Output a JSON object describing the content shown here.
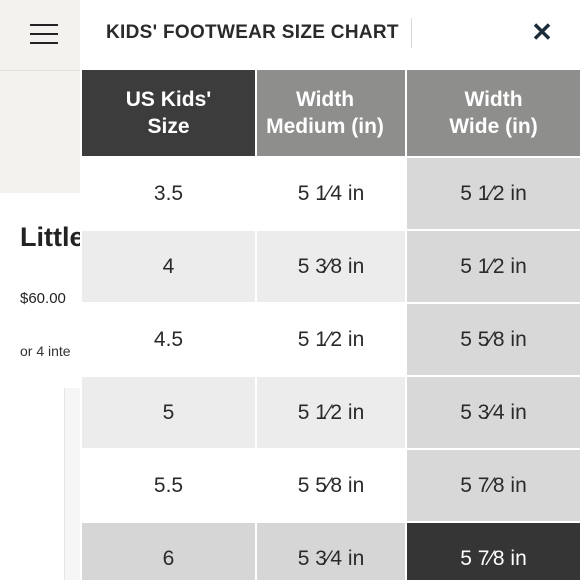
{
  "background_page": {
    "product_title": "Little",
    "price": "$60.00",
    "installments": "or 4 inte"
  },
  "modal": {
    "title": "KIDS' FOOTWEAR SIZE CHART",
    "close_glyph": "✕",
    "columns": [
      {
        "line1": "US Kids'",
        "line2": "Size"
      },
      {
        "line1": "Width",
        "line2": "Medium (in)"
      },
      {
        "line1": "Width",
        "line2": "Wide (in)"
      }
    ],
    "rows": [
      {
        "size": "3.5",
        "medium": "5 1⁄4 in",
        "wide": "5 1⁄2 in"
      },
      {
        "size": "4",
        "medium": "5 3⁄8 in",
        "wide": "5 1⁄2 in"
      },
      {
        "size": "4.5",
        "medium": "5 1⁄2 in",
        "wide": "5 5⁄8 in"
      },
      {
        "size": "5",
        "medium": "5 1⁄2 in",
        "wide": "5 3⁄4 in"
      },
      {
        "size": "5.5",
        "medium": "5 5⁄8 in",
        "wide": "5 7⁄8 in"
      },
      {
        "size": "6",
        "medium": "5 3⁄4 in",
        "wide": "5 7⁄8 in"
      }
    ],
    "colors": {
      "header_dark": "#3c3c3c",
      "header_gray": "#8e8e8c",
      "selected_cell": "#353535"
    }
  }
}
